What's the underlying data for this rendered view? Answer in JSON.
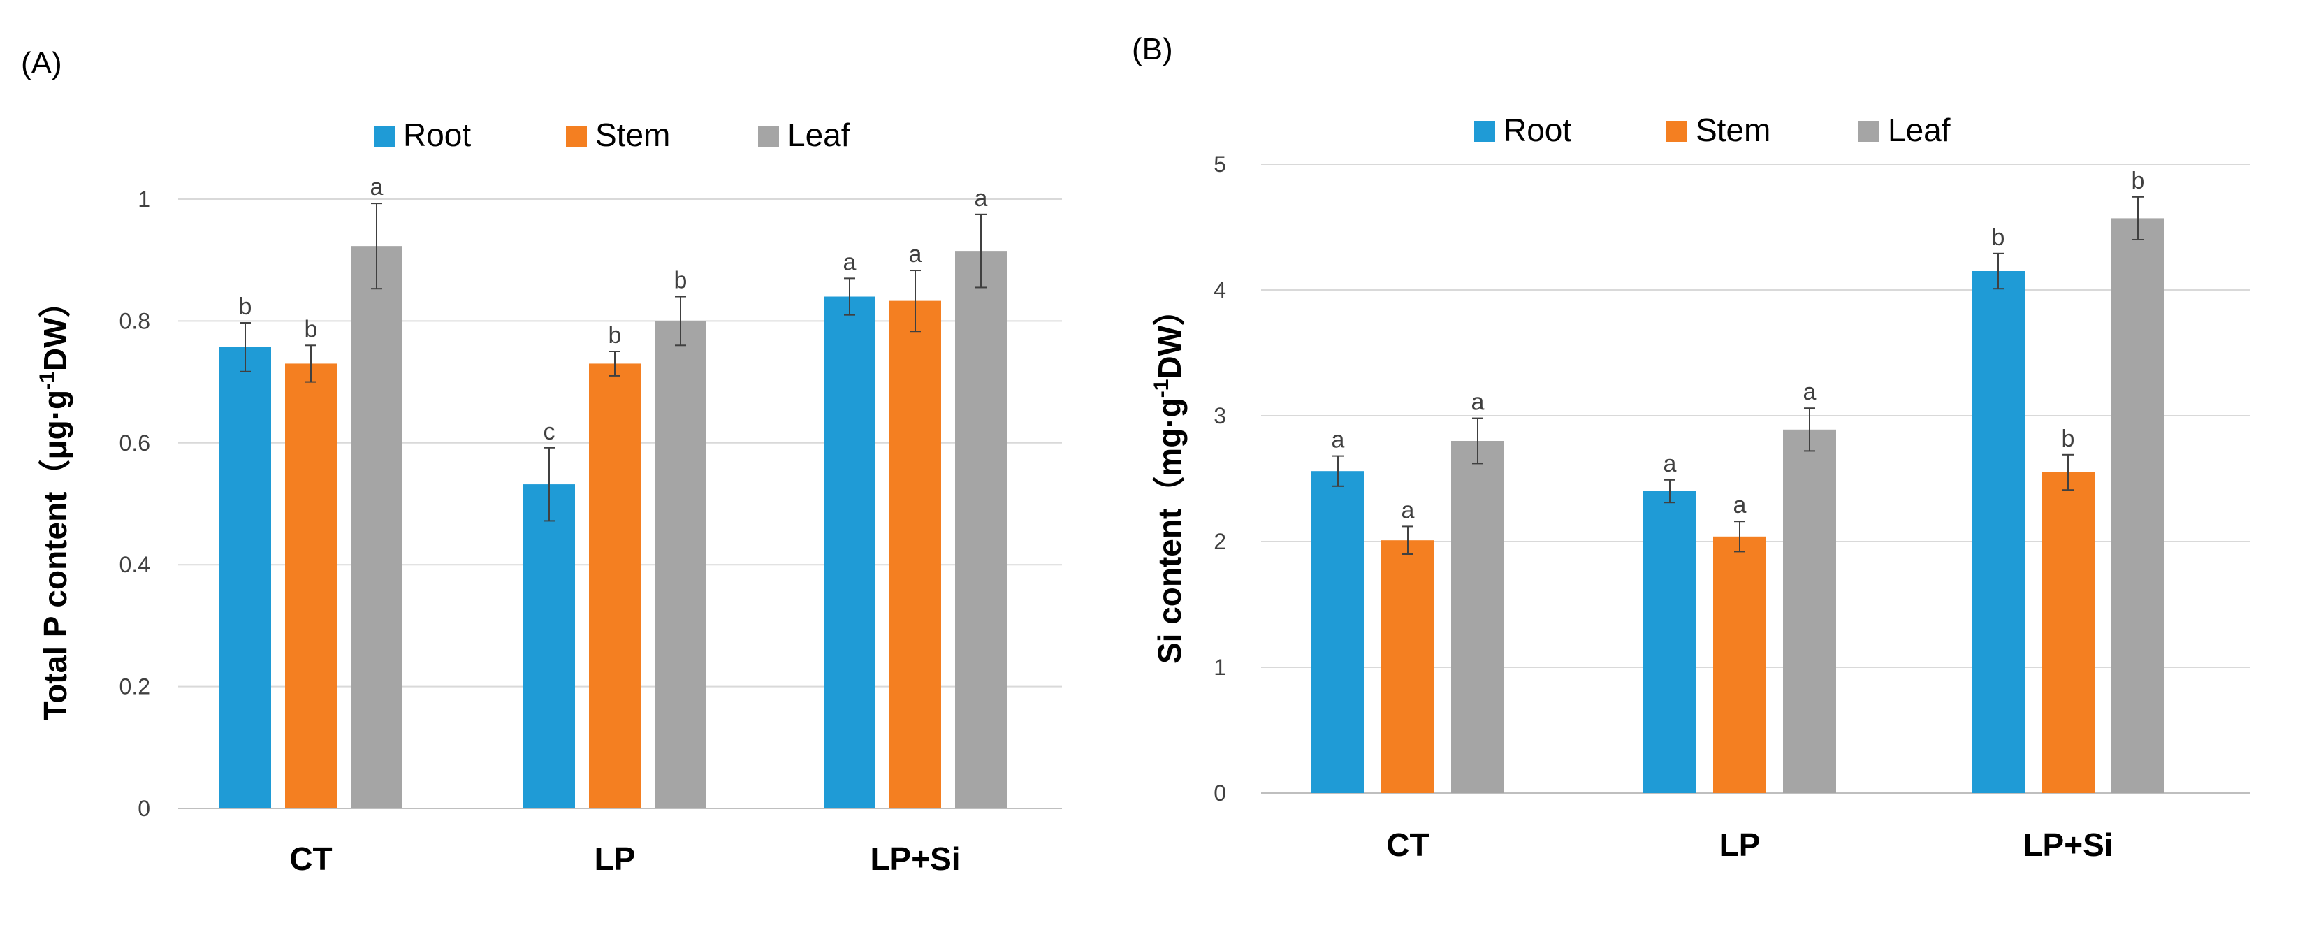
{
  "figure": {
    "panels": [
      {
        "label": "(A)",
        "chart_data": {
          "type": "bar",
          "categories": [
            "CT",
            "LP",
            "LP+Si"
          ],
          "ylabel": "Total P content（μg·g⁻¹DW）",
          "ylabel_parts": {
            "pre": "Total P content（μg·g",
            "sup": "-1",
            "post": "DW）"
          },
          "ylim": [
            0,
            1
          ],
          "yticks": [
            0,
            0.2,
            0.4,
            0.6,
            0.8,
            1
          ],
          "ytick_labels": [
            "0",
            "0.2",
            "0.4",
            "0.6",
            "0.8",
            "1"
          ],
          "grid": true,
          "legend_position": "top-center",
          "series": [
            {
              "name": "Root",
              "color": "#1f9bd6",
              "values": [
                0.757,
                0.532,
                0.84
              ],
              "errors": [
                0.04,
                0.06,
                0.03
              ],
              "significance": [
                "b",
                "c",
                "a"
              ]
            },
            {
              "name": "Stem",
              "color": "#f47f21",
              "values": [
                0.73,
                0.73,
                0.833
              ],
              "errors": [
                0.03,
                0.02,
                0.05
              ],
              "significance": [
                "b",
                "b",
                "a"
              ]
            },
            {
              "name": "Leaf",
              "color": "#a5a5a5",
              "values": [
                0.923,
                0.8,
                0.915
              ],
              "errors": [
                0.07,
                0.04,
                0.06
              ],
              "significance": [
                "a",
                "b",
                "a"
              ]
            }
          ]
        }
      },
      {
        "label": "(B)",
        "chart_data": {
          "type": "bar",
          "categories": [
            "CT",
            "LP",
            "LP+Si"
          ],
          "ylabel": "Si content（mg·g⁻¹DW）",
          "ylabel_parts": {
            "pre": "Si content（mg·g",
            "sup": "-1",
            "post": "DW）"
          },
          "ylim": [
            0,
            5
          ],
          "yticks": [
            0,
            1,
            2,
            3,
            4,
            5
          ],
          "ytick_labels": [
            "0",
            "1",
            "2",
            "3",
            "4",
            "5"
          ],
          "grid": true,
          "legend_position": "top-center",
          "series": [
            {
              "name": "Root",
              "color": "#1f9bd6",
              "values": [
                2.56,
                2.4,
                4.15
              ],
              "errors": [
                0.12,
                0.09,
                0.14
              ],
              "significance": [
                "a",
                "a",
                "b"
              ]
            },
            {
              "name": "Stem",
              "color": "#f47f21",
              "values": [
                2.01,
                2.04,
                2.55
              ],
              "errors": [
                0.11,
                0.12,
                0.14
              ],
              "significance": [
                "a",
                "a",
                "b"
              ]
            },
            {
              "name": "Leaf",
              "color": "#a5a5a5",
              "values": [
                2.8,
                2.89,
                4.57
              ],
              "errors": [
                0.18,
                0.17,
                0.17
              ],
              "significance": [
                "a",
                "a",
                "b"
              ]
            }
          ]
        }
      }
    ]
  }
}
